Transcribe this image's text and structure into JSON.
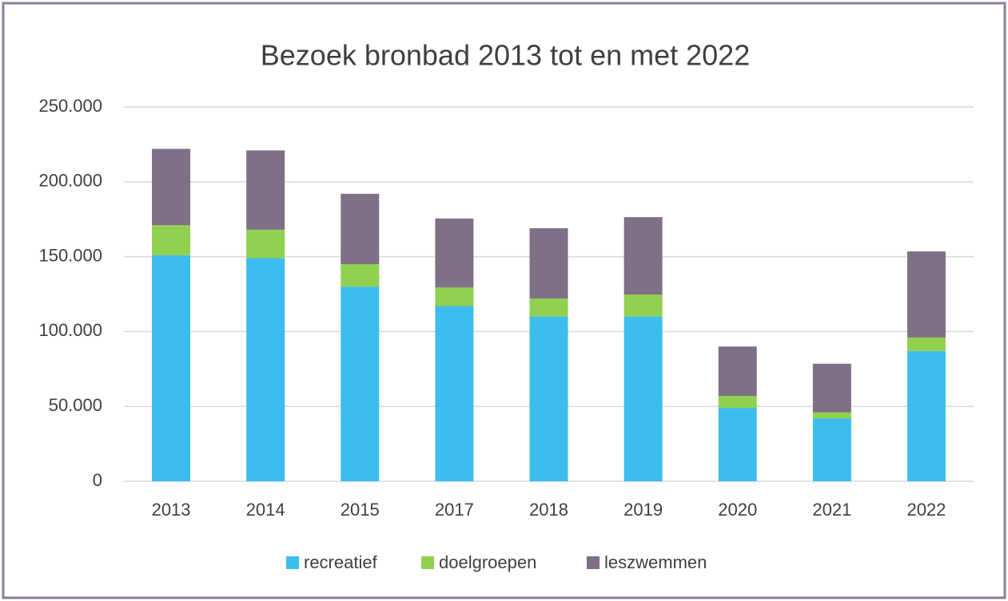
{
  "chart_data": {
    "type": "stacked_bar",
    "title": "Bezoek bronbad 2013 tot en met 2022",
    "categories": [
      "2013",
      "2014",
      "2015",
      "2017",
      "2018",
      "2019",
      "2020",
      "2021",
      "2022"
    ],
    "series": [
      {
        "name": "recreatief",
        "color": "#3dbdee",
        "values": [
          151000,
          149000,
          130000,
          117000,
          110000,
          110000,
          49000,
          42000,
          87000
        ]
      },
      {
        "name": "doelgroepen",
        "color": "#92d050",
        "values": [
          20000,
          19000,
          15000,
          12500,
          12000,
          14700,
          8000,
          4000,
          9000
        ]
      },
      {
        "name": "leszwemmen",
        "color": "#7f7086",
        "values": [
          51000,
          53000,
          47000,
          46000,
          47000,
          51700,
          33000,
          32500,
          57500
        ]
      }
    ],
    "ylim": [
      0,
      250000
    ],
    "yticks": [
      0,
      {
        "value": 50000,
        "label": "50.000"
      },
      {
        "value": 100000,
        "label": "100.000"
      },
      {
        "value": 150000,
        "label": "150.000"
      },
      {
        "value": 200000,
        "label": "200.000"
      },
      {
        "value": 250000,
        "label": "250.000"
      }
    ],
    "grid": true,
    "legend": "bottom"
  }
}
